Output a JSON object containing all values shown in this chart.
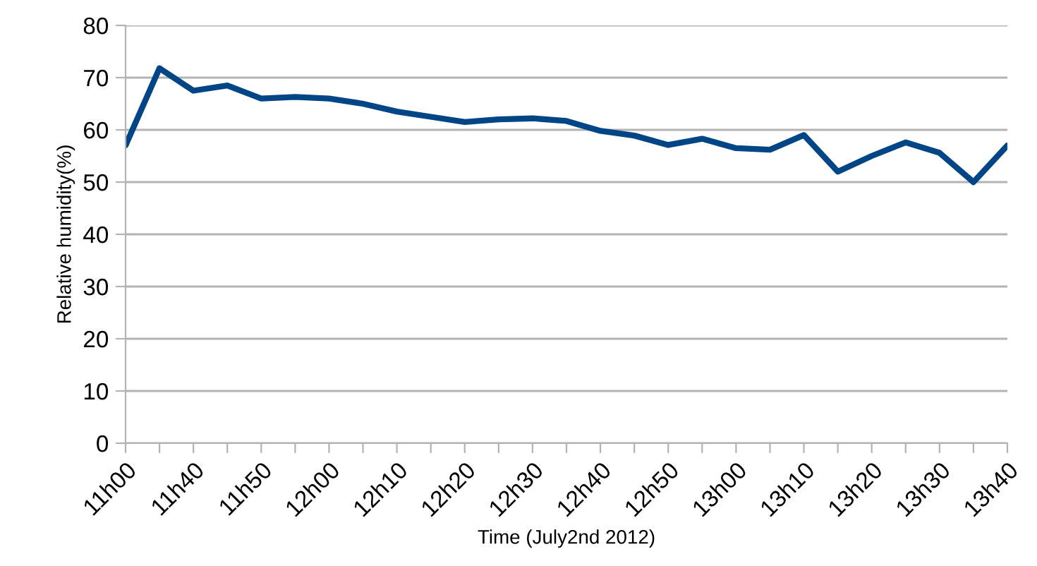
{
  "chart_data": {
    "type": "line",
    "xlabel": "Time (July2nd 2012)",
    "ylabel": "Relative humidity(%)",
    "categories": [
      "11h00",
      null,
      "11h40",
      null,
      "11h50",
      null,
      "12h00",
      null,
      "12h10",
      null,
      "12h20",
      null,
      "12h30",
      null,
      "12h40",
      null,
      "12h50",
      null,
      "13h00",
      null,
      "13h10",
      null,
      "13h20",
      null,
      "13h30",
      null,
      "13h40"
    ],
    "series": [
      {
        "color": "#004586",
        "values": [
          57,
          71.8,
          67.5,
          68.5,
          66,
          66.3,
          66,
          65,
          63.5,
          62.5,
          61.5,
          62,
          62.2,
          61.7,
          59.8,
          58.9,
          57.1,
          58.3,
          56.5,
          56.2,
          59,
          52,
          55,
          57.6,
          55.6,
          50,
          57
        ]
      }
    ],
    "ylim": [
      0,
      80
    ],
    "yticks": [
      0,
      10,
      20,
      30,
      40,
      50,
      60,
      70,
      80
    ],
    "grid": "y",
    "legend": false,
    "marker": "none",
    "line_style": "solid"
  }
}
